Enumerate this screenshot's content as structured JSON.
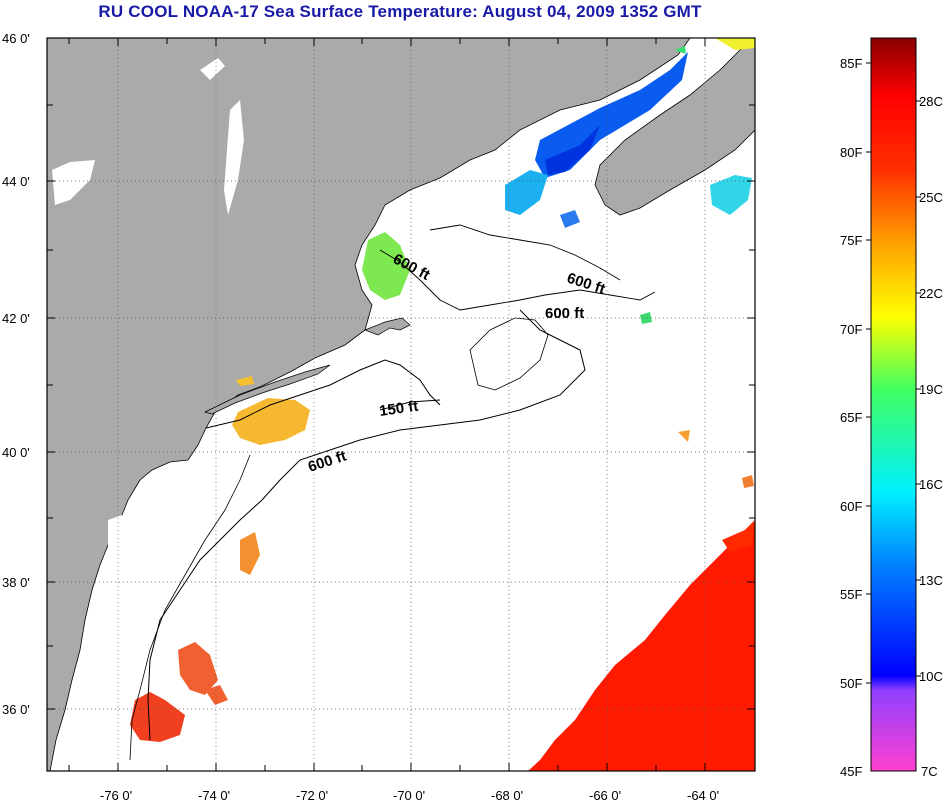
{
  "title": "RU COOL  NOAA-17  Sea Surface Temperature:  August 04, 2009 1352 GMT",
  "map": {
    "lat_labels": [
      "46 0'",
      "44 0'",
      "42 0'",
      "40 0'",
      "38 0'",
      "36 0'"
    ],
    "lon_labels": [
      "-76 0'",
      "-74 0'",
      "-72 0'",
      "-70 0'",
      "-68 0'",
      "-66 0'",
      "-64 0'"
    ],
    "contour_labels": [
      {
        "text": "600 ft",
        "id": "gulf-maine"
      },
      {
        "text": "600 ft",
        "id": "east"
      },
      {
        "text": "600 ft",
        "id": "georges"
      },
      {
        "text": "150 ft",
        "id": "shelf-150"
      },
      {
        "text": "600 ft",
        "id": "shelf-600"
      }
    ],
    "colors": {
      "land": "#aaaaaa",
      "water_nodata": "#ffffff",
      "warm_sst": "#ff1a00"
    }
  },
  "colorbar": {
    "fahrenheit_labels": [
      "85F",
      "80F",
      "75F",
      "70F",
      "65F",
      "60F",
      "55F",
      "50F",
      "45F"
    ],
    "celsius_labels": [
      "28C",
      "25C",
      "22C",
      "19C",
      "16C",
      "13C",
      "10C",
      "7C"
    ],
    "range_f": [
      45,
      86
    ],
    "range_c": [
      7,
      30
    ]
  }
}
